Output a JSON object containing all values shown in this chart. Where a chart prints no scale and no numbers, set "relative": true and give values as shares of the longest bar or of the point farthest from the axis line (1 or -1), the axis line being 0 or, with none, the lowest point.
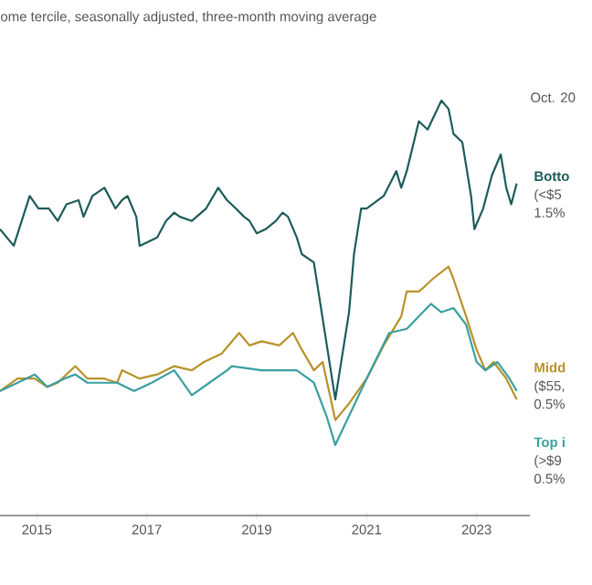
{
  "chart_data": {
    "type": "line",
    "subtitle": "ome tercile, seasonally adjusted, three-month moving average",
    "relative": true,
    "xlim": [
      2014.33,
      2023.97
    ],
    "xticks": [
      2015,
      2017,
      2019,
      2021,
      2023
    ],
    "annotations": [
      "Oct. 20",
      "(<$5",
      "1.5%",
      "($55,",
      "0.5%",
      "(>$9",
      "0.5%"
    ],
    "series": [
      {
        "name": "Botto",
        "color": "#1d5c5a",
        "x": [
          2014.33,
          2014.58,
          2014.87,
          2015.03,
          2015.22,
          2015.38,
          2015.54,
          2015.76,
          2015.85,
          2016.01,
          2016.23,
          2016.43,
          2016.55,
          2016.65,
          2016.81,
          2016.87,
          2017.03,
          2017.19,
          2017.35,
          2017.5,
          2017.6,
          2017.82,
          2018.08,
          2018.3,
          2018.46,
          2018.62,
          2018.77,
          2018.87,
          2019.0,
          2019.16,
          2019.35,
          2019.47,
          2019.57,
          2019.73,
          2019.82,
          2020.04,
          2020.43,
          2020.68,
          2020.77,
          2020.9,
          2021.0,
          2021.31,
          2021.54,
          2021.63,
          2021.73,
          2021.95,
          2022.11,
          2022.36,
          2022.49,
          2022.58,
          2022.74,
          2022.9,
          2022.96,
          2023.12,
          2023.28,
          2023.44,
          2023.54,
          2023.63,
          2023.73
        ],
        "values": [
          0.69,
          0.65,
          0.77,
          0.74,
          0.74,
          0.71,
          0.75,
          0.76,
          0.72,
          0.77,
          0.79,
          0.74,
          0.76,
          0.77,
          0.72,
          0.65,
          0.66,
          0.67,
          0.71,
          0.73,
          0.72,
          0.71,
          0.74,
          0.79,
          0.76,
          0.74,
          0.72,
          0.71,
          0.68,
          0.69,
          0.71,
          0.73,
          0.72,
          0.67,
          0.63,
          0.61,
          0.28,
          0.49,
          0.63,
          0.74,
          0.74,
          0.77,
          0.83,
          0.79,
          0.83,
          0.95,
          0.93,
          1,
          0.98,
          0.92,
          0.9,
          0.77,
          0.69,
          0.74,
          0.82,
          0.87,
          0.79,
          0.75,
          0.8
        ]
      },
      {
        "name": "Midd",
        "color": "#b8922a",
        "x": [
          2014.33,
          2014.65,
          2014.96,
          2015.19,
          2015.38,
          2015.7,
          2015.92,
          2016.23,
          2016.46,
          2016.55,
          2016.87,
          2017.19,
          2017.5,
          2017.82,
          2018.04,
          2018.36,
          2018.68,
          2018.87,
          2019.09,
          2019.41,
          2019.66,
          2019.82,
          2020.04,
          2020.2,
          2020.43,
          2020.68,
          2021.0,
          2021.31,
          2021.63,
          2021.73,
          2021.95,
          2022.04,
          2022.2,
          2022.49,
          2022.58,
          2022.81,
          2023.0,
          2023.16,
          2023.31,
          2023.54,
          2023.73
        ],
        "values": [
          0.3,
          0.33,
          0.33,
          0.31,
          0.32,
          0.36,
          0.33,
          0.33,
          0.32,
          0.35,
          0.33,
          0.34,
          0.36,
          0.35,
          0.37,
          0.39,
          0.44,
          0.41,
          0.42,
          0.41,
          0.44,
          0.4,
          0.35,
          0.37,
          0.23,
          0.27,
          0.33,
          0.41,
          0.48,
          0.54,
          0.54,
          0.55,
          0.57,
          0.6,
          0.57,
          0.48,
          0.4,
          0.35,
          0.37,
          0.33,
          0.28
        ]
      },
      {
        "name": "Top i",
        "color": "#3a9fa0",
        "x": [
          2014.33,
          2014.65,
          2014.96,
          2015.19,
          2015.5,
          2015.7,
          2015.92,
          2016.46,
          2016.77,
          2017.09,
          2017.5,
          2017.82,
          2018.14,
          2018.46,
          2018.55,
          2019.09,
          2019.41,
          2019.73,
          2020.04,
          2020.27,
          2020.43,
          2020.68,
          2021.0,
          2021.41,
          2021.73,
          2021.95,
          2022.17,
          2022.36,
          2022.58,
          2022.81,
          2023.0,
          2023.16,
          2023.38,
          2023.6,
          2023.73
        ],
        "values": [
          0.3,
          0.32,
          0.34,
          0.31,
          0.33,
          0.34,
          0.32,
          0.32,
          0.3,
          0.32,
          0.35,
          0.29,
          0.32,
          0.35,
          0.36,
          0.35,
          0.35,
          0.35,
          0.32,
          0.24,
          0.17,
          0.24,
          0.33,
          0.44,
          0.45,
          0.48,
          0.51,
          0.49,
          0.5,
          0.46,
          0.37,
          0.35,
          0.37,
          0.33,
          0.3
        ]
      }
    ]
  }
}
